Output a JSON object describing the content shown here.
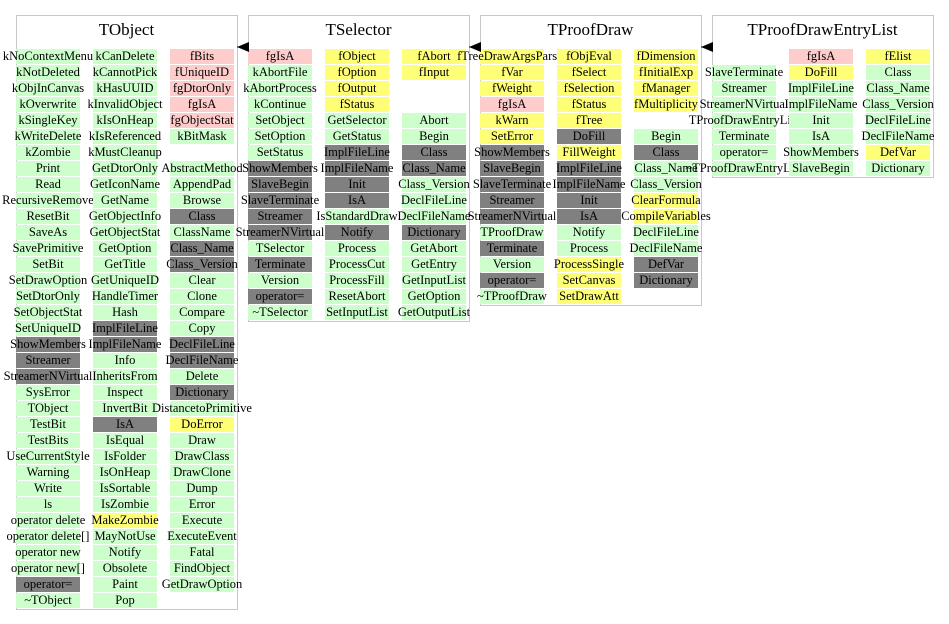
{
  "classes": [
    {
      "name": "TObject",
      "columns": [
        [
          [
            "kNoContextMenu",
            "#ccffcc"
          ],
          [
            "kNotDeleted",
            "#ccffcc"
          ],
          [
            "kObjInCanvas",
            "#ccffcc"
          ],
          [
            "kOverwrite",
            "#ccffcc"
          ],
          [
            "kSingleKey",
            "#ccffcc"
          ],
          [
            "kWriteDelete",
            "#ccffcc"
          ],
          [
            "kZombie",
            "#ccffcc"
          ],
          [
            "Print",
            "#ccffcc"
          ],
          [
            "Read",
            "#ccffcc"
          ],
          [
            "RecursiveRemove",
            "#ccffcc"
          ],
          [
            "ResetBit",
            "#ccffcc"
          ],
          [
            "SaveAs",
            "#ccffcc"
          ],
          [
            "SavePrimitive",
            "#ccffcc"
          ],
          [
            "SetBit",
            "#ccffcc"
          ],
          [
            "SetDrawOption",
            "#ccffcc"
          ],
          [
            "SetDtorOnly",
            "#ccffcc"
          ],
          [
            "SetObjectStat",
            "#ccffcc"
          ],
          [
            "SetUniqueID",
            "#ccffcc"
          ],
          [
            "ShowMembers",
            "#808080"
          ],
          [
            "Streamer",
            "#808080"
          ],
          [
            "StreamerNVirtual",
            "#808080"
          ],
          [
            "SysError",
            "#ccffcc"
          ],
          [
            "TObject",
            "#ccffcc"
          ],
          [
            "TestBit",
            "#ccffcc"
          ],
          [
            "TestBits",
            "#ccffcc"
          ],
          [
            "UseCurrentStyle",
            "#ccffcc"
          ],
          [
            "Warning",
            "#ccffcc"
          ],
          [
            "Write",
            "#ccffcc"
          ],
          [
            "ls",
            "#ccffcc"
          ],
          [
            "operator delete",
            "#ccffcc"
          ],
          [
            "operator delete[]",
            "#ccffcc"
          ],
          [
            "operator new",
            "#ccffcc"
          ],
          [
            "operator new[]",
            "#ccffcc"
          ],
          [
            "operator=",
            "#808080"
          ],
          [
            "~TObject",
            "#ccffcc"
          ]
        ],
        [
          [
            "kCanDelete",
            "#ccffcc"
          ],
          [
            "kCannotPick",
            "#ccffcc"
          ],
          [
            "kHasUUID",
            "#ccffcc"
          ],
          [
            "kInvalidObject",
            "#ccffcc"
          ],
          [
            "kIsOnHeap",
            "#ccffcc"
          ],
          [
            "kIsReferenced",
            "#ccffcc"
          ],
          [
            "kMustCleanup",
            "#ccffcc"
          ],
          [
            "GetDtorOnly",
            "#ccffcc"
          ],
          [
            "GetIconName",
            "#ccffcc"
          ],
          [
            "GetName",
            "#ccffcc"
          ],
          [
            "GetObjectInfo",
            "#ccffcc"
          ],
          [
            "GetObjectStat",
            "#ccffcc"
          ],
          [
            "GetOption",
            "#ccffcc"
          ],
          [
            "GetTitle",
            "#ccffcc"
          ],
          [
            "GetUniqueID",
            "#ccffcc"
          ],
          [
            "HandleTimer",
            "#ccffcc"
          ],
          [
            "Hash",
            "#ccffcc"
          ],
          [
            "ImplFileLine",
            "#808080"
          ],
          [
            "ImplFileName",
            "#808080"
          ],
          [
            "Info",
            "#ccffcc"
          ],
          [
            "InheritsFrom",
            "#ccffcc"
          ],
          [
            "Inspect",
            "#ccffcc"
          ],
          [
            "InvertBit",
            "#ccffcc"
          ],
          [
            "IsA",
            "#808080"
          ],
          [
            "IsEqual",
            "#ccffcc"
          ],
          [
            "IsFolder",
            "#ccffcc"
          ],
          [
            "IsOnHeap",
            "#ccffcc"
          ],
          [
            "IsSortable",
            "#ccffcc"
          ],
          [
            "IsZombie",
            "#ccffcc"
          ],
          [
            "MakeZombie",
            "#ffff77"
          ],
          [
            "MayNotUse",
            "#ccffcc"
          ],
          [
            "Notify",
            "#ccffcc"
          ],
          [
            "Obsolete",
            "#ccffcc"
          ],
          [
            "Paint",
            "#ccffcc"
          ],
          [
            "Pop",
            "#ccffcc"
          ]
        ],
        [
          [
            "fBits",
            "#ffcccc"
          ],
          [
            "fUniqueID",
            "#ffcccc"
          ],
          [
            "fgDtorOnly",
            "#ffcccc"
          ],
          [
            "fgIsA",
            "#ffcccc"
          ],
          [
            "fgObjectStat",
            "#ffcccc"
          ],
          [
            "kBitMask",
            "#ccffcc"
          ],
          null,
          [
            "AbstractMethod",
            "#ccffcc"
          ],
          [
            "AppendPad",
            "#ccffcc"
          ],
          [
            "Browse",
            "#ccffcc"
          ],
          [
            "Class",
            "#808080"
          ],
          [
            "ClassName",
            "#ccffcc"
          ],
          [
            "Class_Name",
            "#808080"
          ],
          [
            "Class_Version",
            "#808080"
          ],
          [
            "Clear",
            "#ccffcc"
          ],
          [
            "Clone",
            "#ccffcc"
          ],
          [
            "Compare",
            "#ccffcc"
          ],
          [
            "Copy",
            "#ccffcc"
          ],
          [
            "DeclFileLine",
            "#808080"
          ],
          [
            "DeclFileName",
            "#808080"
          ],
          [
            "Delete",
            "#ccffcc"
          ],
          [
            "Dictionary",
            "#808080"
          ],
          [
            "DistancetoPrimitive",
            "#ccffcc"
          ],
          [
            "DoError",
            "#ffff77"
          ],
          [
            "Draw",
            "#ccffcc"
          ],
          [
            "DrawClass",
            "#ccffcc"
          ],
          [
            "DrawClone",
            "#ccffcc"
          ],
          [
            "Dump",
            "#ccffcc"
          ],
          [
            "Error",
            "#ccffcc"
          ],
          [
            "Execute",
            "#ccffcc"
          ],
          [
            "ExecuteEvent",
            "#ccffcc"
          ],
          [
            "Fatal",
            "#ccffcc"
          ],
          [
            "FindObject",
            "#ccffcc"
          ],
          [
            "GetDrawOption",
            "#ccffcc"
          ]
        ]
      ]
    },
    {
      "name": "TSelector",
      "columns": [
        [
          [
            "fgIsA",
            "#ffcccc"
          ],
          [
            "kAbortFile",
            "#ccffcc"
          ],
          [
            "kAbortProcess",
            "#ccffcc"
          ],
          [
            "kContinue",
            "#ccffcc"
          ],
          [
            "SetObject",
            "#ccffcc"
          ],
          [
            "SetOption",
            "#ccffcc"
          ],
          [
            "SetStatus",
            "#ccffcc"
          ],
          [
            "ShowMembers",
            "#808080"
          ],
          [
            "SlaveBegin",
            "#808080"
          ],
          [
            "SlaveTerminate",
            "#808080"
          ],
          [
            "Streamer",
            "#808080"
          ],
          [
            "StreamerNVirtual",
            "#808080"
          ],
          [
            "TSelector",
            "#ccffcc"
          ],
          [
            "Terminate",
            "#808080"
          ],
          [
            "Version",
            "#ccffcc"
          ],
          [
            "operator=",
            "#808080"
          ],
          [
            "~TSelector",
            "#ccffcc"
          ]
        ],
        [
          [
            "fObject",
            "#ffff77"
          ],
          [
            "fOption",
            "#ffff77"
          ],
          [
            "fOutput",
            "#ffff77"
          ],
          [
            "fStatus",
            "#ffff77"
          ],
          [
            "GetSelector",
            "#ccffcc"
          ],
          [
            "GetStatus",
            "#ccffcc"
          ],
          [
            "ImplFileLine",
            "#808080"
          ],
          [
            "ImplFileName",
            "#808080"
          ],
          [
            "Init",
            "#808080"
          ],
          [
            "IsA",
            "#808080"
          ],
          [
            "IsStandardDraw",
            "#ccffcc"
          ],
          [
            "Notify",
            "#808080"
          ],
          [
            "Process",
            "#ccffcc"
          ],
          [
            "ProcessCut",
            "#ccffcc"
          ],
          [
            "ProcessFill",
            "#ccffcc"
          ],
          [
            "ResetAbort",
            "#ccffcc"
          ],
          [
            "SetInputList",
            "#ccffcc"
          ]
        ],
        [
          [
            "fAbort",
            "#ffff77"
          ],
          [
            "fInput",
            "#ffff77"
          ],
          null,
          null,
          [
            "Abort",
            "#ccffcc"
          ],
          [
            "Begin",
            "#ccffcc"
          ],
          [
            "Class",
            "#808080"
          ],
          [
            "Class_Name",
            "#808080"
          ],
          [
            "Class_Version",
            "#ccffcc"
          ],
          [
            "DeclFileLine",
            "#ccffcc"
          ],
          [
            "DeclFileName",
            "#ccffcc"
          ],
          [
            "Dictionary",
            "#808080"
          ],
          [
            "GetAbort",
            "#ccffcc"
          ],
          [
            "GetEntry",
            "#ccffcc"
          ],
          [
            "GetInputList",
            "#ccffcc"
          ],
          [
            "GetOption",
            "#ccffcc"
          ],
          [
            "GetOutputList",
            "#ccffcc"
          ]
        ]
      ]
    },
    {
      "name": "TProofDraw",
      "columns": [
        [
          [
            "fTreeDrawArgsParser",
            "#ffff77"
          ],
          [
            "fVar",
            "#ffff77"
          ],
          [
            "fWeight",
            "#ffff77"
          ],
          [
            "fgIsA",
            "#ffcccc"
          ],
          [
            "kWarn",
            "#ffff77"
          ],
          [
            "SetError",
            "#ffff77"
          ],
          [
            "ShowMembers",
            "#808080"
          ],
          [
            "SlaveBegin",
            "#808080"
          ],
          [
            "SlaveTerminate",
            "#808080"
          ],
          [
            "Streamer",
            "#808080"
          ],
          [
            "StreamerNVirtual",
            "#808080"
          ],
          [
            "TProofDraw",
            "#ccffcc"
          ],
          [
            "Terminate",
            "#808080"
          ],
          [
            "Version",
            "#ccffcc"
          ],
          [
            "operator=",
            "#808080"
          ],
          [
            "~TProofDraw",
            "#ccffcc"
          ]
        ],
        [
          [
            "fObjEval",
            "#ffff77"
          ],
          [
            "fSelect",
            "#ffff77"
          ],
          [
            "fSelection",
            "#ffff77"
          ],
          [
            "fStatus",
            "#ffff77"
          ],
          [
            "fTree",
            "#ffff77"
          ],
          [
            "DoFill",
            "#808080"
          ],
          [
            "FillWeight",
            "#ffff77"
          ],
          [
            "ImplFileLine",
            "#808080"
          ],
          [
            "ImplFileName",
            "#808080"
          ],
          [
            "Init",
            "#808080"
          ],
          [
            "IsA",
            "#808080"
          ],
          [
            "Notify",
            "#ccffcc"
          ],
          [
            "Process",
            "#ccffcc"
          ],
          [
            "ProcessSingle",
            "#ffff77"
          ],
          [
            "SetCanvas",
            "#ffff77"
          ],
          [
            "SetDrawAtt",
            "#ffff77"
          ]
        ],
        [
          [
            "fDimension",
            "#ffff77"
          ],
          [
            "fInitialExp",
            "#ffff77"
          ],
          [
            "fManager",
            "#ffff77"
          ],
          [
            "fMultiplicity",
            "#ffff77"
          ],
          null,
          [
            "Begin",
            "#ccffcc"
          ],
          [
            "Class",
            "#808080"
          ],
          [
            "Class_Name",
            "#ccffcc"
          ],
          [
            "Class_Version",
            "#ccffcc"
          ],
          [
            "ClearFormula",
            "#ffff77"
          ],
          [
            "CompileVariables",
            "#ffff77"
          ],
          [
            "DeclFileLine",
            "#ccffcc"
          ],
          [
            "DeclFileName",
            "#ccffcc"
          ],
          [
            "DefVar",
            "#808080"
          ],
          [
            "Dictionary",
            "#808080"
          ]
        ]
      ]
    },
    {
      "name": "TProofDrawEntryList",
      "columns": [
        [
          null,
          [
            "SlaveTerminate",
            "#ccffcc"
          ],
          [
            "Streamer",
            "#ccffcc"
          ],
          [
            "StreamerNVirtual",
            "#ccffcc"
          ],
          [
            "TProofDrawEntryList",
            "#ccffcc"
          ],
          [
            "Terminate",
            "#ccffcc"
          ],
          [
            "operator=",
            "#ccffcc"
          ],
          [
            "~TProofDrawEntryList",
            "#ccffcc"
          ]
        ],
        [
          [
            "fgIsA",
            "#ffcccc"
          ],
          [
            "DoFill",
            "#ffff77"
          ],
          [
            "ImplFileLine",
            "#ccffcc"
          ],
          [
            "ImplFileName",
            "#ccffcc"
          ],
          [
            "Init",
            "#ccffcc"
          ],
          [
            "IsA",
            "#ccffcc"
          ],
          [
            "ShowMembers",
            "#ccffcc"
          ],
          [
            "SlaveBegin",
            "#ccffcc"
          ]
        ],
        [
          [
            "fElist",
            "#ffff77"
          ],
          [
            "Class",
            "#ccffcc"
          ],
          [
            "Class_Name",
            "#ccffcc"
          ],
          [
            "Class_Version",
            "#ccffcc"
          ],
          [
            "DeclFileLine",
            "#ccffcc"
          ],
          [
            "DeclFileName",
            "#ccffcc"
          ],
          [
            "DefVar",
            "#ffff77"
          ],
          [
            "Dictionary",
            "#ccffcc"
          ]
        ]
      ]
    }
  ]
}
